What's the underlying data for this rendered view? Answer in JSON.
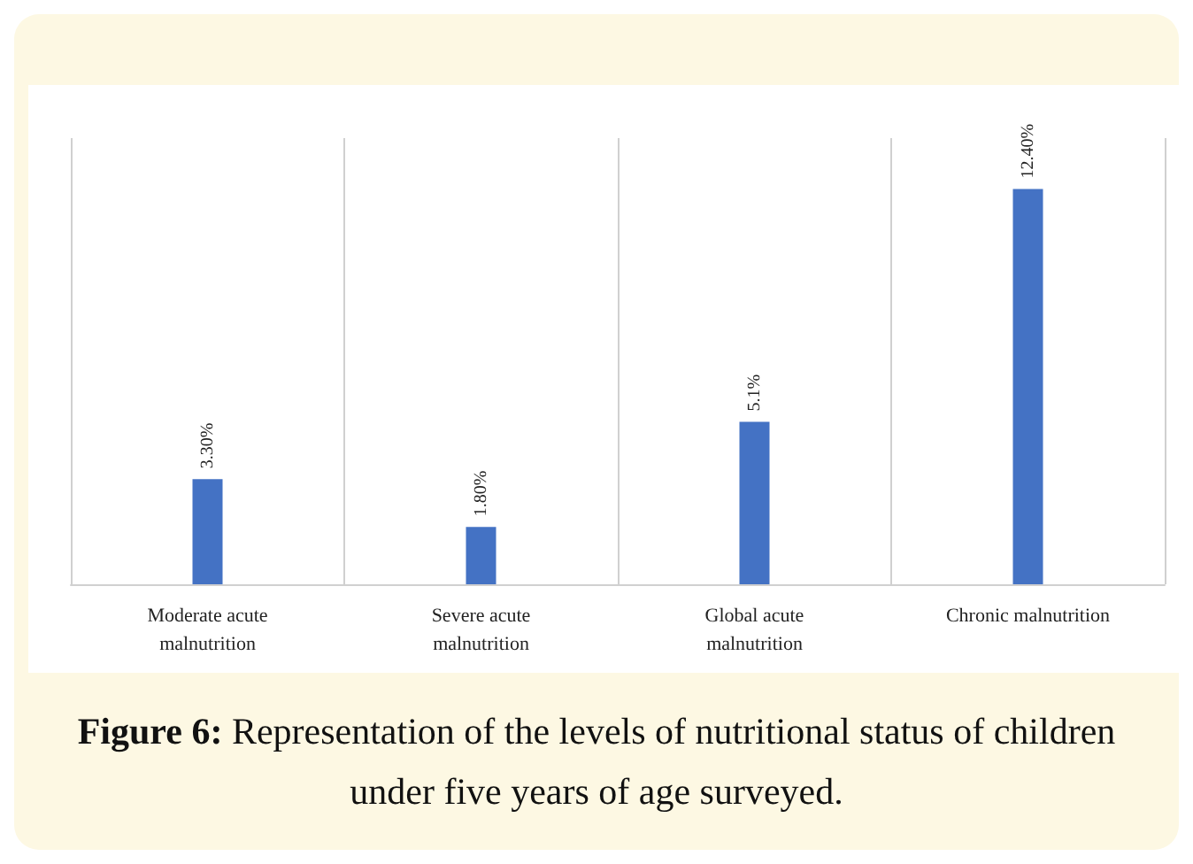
{
  "chart_data": {
    "type": "bar",
    "title": "Figure 6: Representation of the levels of nutritional status of children under five years of age surveyed.",
    "categories": [
      "Moderate acute\nmalnutrition",
      "Severe acute\nmalnutrition",
      "Global acute\nmalnutrition",
      "Chronic malnutrition"
    ],
    "values": [
      3.3,
      1.8,
      5.1,
      12.4
    ],
    "value_labels": [
      "3.30%",
      "1.80%",
      "5.1%",
      "12.40%"
    ],
    "color": "#4472c4",
    "grid": "x"
  }
}
